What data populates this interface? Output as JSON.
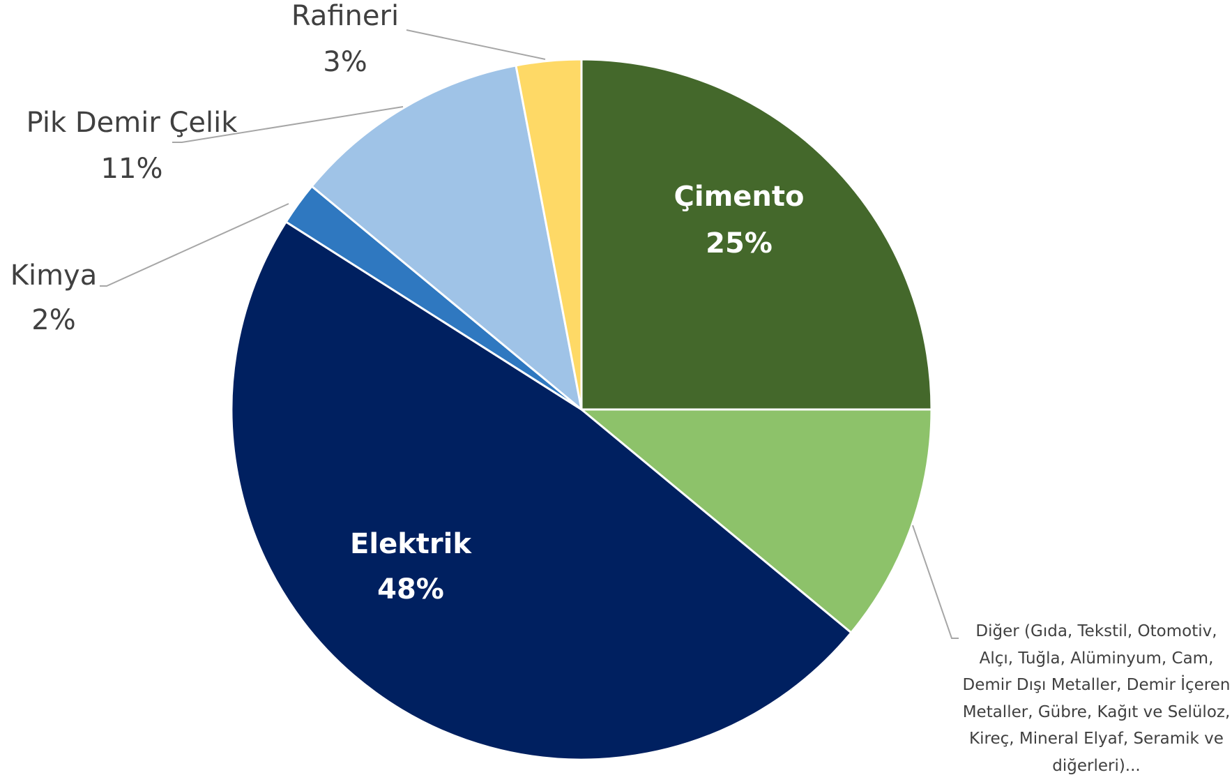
{
  "chart_data": {
    "type": "pie",
    "categories": [
      "Çimento",
      "Diğer (Gıda, Tekstil, Otomotiv, Alçı, Tuğla, Alüminyum, Cam, Demir Dışı Metaller, Demir İçeren Metaller, Gübre, Kağıt ve Selüloz, Kireç, Mineral Elyaf, Seramik ve diğerleri)...",
      "Elektrik",
      "Kimya",
      "Pik Demir Çelik",
      "Rafineri"
    ],
    "values": [
      25,
      11,
      48,
      2,
      11,
      3
    ],
    "value_labels": [
      "25%",
      null,
      "48%",
      "2%",
      "11%",
      "3%"
    ],
    "colors": [
      "#44682b",
      "#8dc26a",
      "#002060",
      "#2f78c0",
      "#9fc3e7",
      "#fed966"
    ]
  }
}
